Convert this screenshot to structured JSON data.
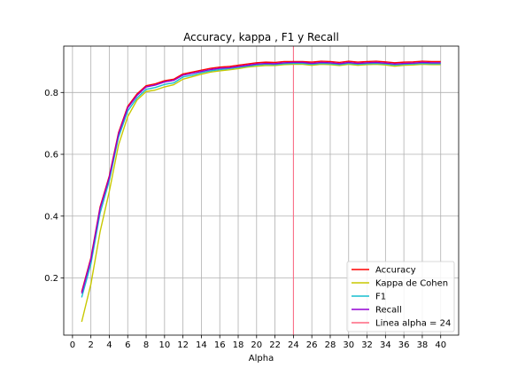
{
  "chart_data": {
    "type": "line",
    "title": "Accuracy, kappa , F1 y Recall",
    "xlabel": "Alpha",
    "ylabel": "",
    "xlim": [
      -0.95,
      41.95
    ],
    "ylim": [
      0.015,
      0.95
    ],
    "grid": true,
    "legend_position": "lower-right",
    "x_ticks": [
      0,
      2,
      4,
      6,
      8,
      10,
      12,
      14,
      16,
      18,
      20,
      22,
      24,
      26,
      28,
      30,
      32,
      34,
      36,
      38,
      40
    ],
    "y_ticks": [
      0.2,
      0.4,
      0.6,
      0.8
    ],
    "y_tick_labels": [
      "0.2",
      "0.4",
      "0.6",
      "0.8"
    ],
    "x": [
      1,
      2,
      3,
      4,
      5,
      6,
      7,
      8,
      9,
      10,
      11,
      12,
      13,
      14,
      15,
      16,
      17,
      18,
      19,
      20,
      21,
      22,
      23,
      24,
      25,
      26,
      27,
      28,
      29,
      30,
      31,
      32,
      33,
      34,
      35,
      36,
      37,
      38,
      39,
      40
    ],
    "series": [
      {
        "name": "Accuracy",
        "color": "#ff0000",
        "values": [
          0.155,
          0.265,
          0.43,
          0.53,
          0.67,
          0.755,
          0.795,
          0.822,
          0.828,
          0.838,
          0.843,
          0.86,
          0.866,
          0.872,
          0.878,
          0.882,
          0.884,
          0.888,
          0.892,
          0.896,
          0.898,
          0.897,
          0.9,
          0.9,
          0.9,
          0.898,
          0.901,
          0.9,
          0.897,
          0.901,
          0.898,
          0.9,
          0.901,
          0.899,
          0.896,
          0.898,
          0.899,
          0.901,
          0.9,
          0.9
        ]
      },
      {
        "name": "Kappa de Cohen",
        "color": "#c8c800",
        "values": [
          0.058,
          0.18,
          0.35,
          0.48,
          0.63,
          0.722,
          0.775,
          0.803,
          0.808,
          0.818,
          0.825,
          0.843,
          0.851,
          0.859,
          0.866,
          0.87,
          0.873,
          0.877,
          0.882,
          0.885,
          0.887,
          0.887,
          0.89,
          0.891,
          0.891,
          0.888,
          0.891,
          0.89,
          0.887,
          0.891,
          0.888,
          0.89,
          0.891,
          0.889,
          0.885,
          0.888,
          0.889,
          0.891,
          0.89,
          0.89
        ]
      },
      {
        "name": "F1",
        "color": "#17becf",
        "values": [
          0.137,
          0.245,
          0.41,
          0.515,
          0.655,
          0.74,
          0.782,
          0.81,
          0.816,
          0.826,
          0.831,
          0.85,
          0.856,
          0.864,
          0.87,
          0.874,
          0.877,
          0.881,
          0.885,
          0.889,
          0.891,
          0.89,
          0.893,
          0.894,
          0.894,
          0.891,
          0.894,
          0.893,
          0.89,
          0.894,
          0.891,
          0.893,
          0.894,
          0.892,
          0.889,
          0.891,
          0.892,
          0.894,
          0.893,
          0.893
        ]
      },
      {
        "name": "Recall",
        "color": "#9400d3",
        "values": [
          0.15,
          0.26,
          0.425,
          0.525,
          0.665,
          0.75,
          0.79,
          0.818,
          0.824,
          0.834,
          0.839,
          0.856,
          0.862,
          0.868,
          0.874,
          0.878,
          0.88,
          0.884,
          0.888,
          0.892,
          0.894,
          0.893,
          0.896,
          0.897,
          0.897,
          0.894,
          0.897,
          0.896,
          0.893,
          0.897,
          0.894,
          0.896,
          0.897,
          0.895,
          0.892,
          0.894,
          0.895,
          0.897,
          0.896,
          0.896
        ]
      }
    ],
    "vline": {
      "name": "Linea alpha = 24",
      "x": 24,
      "color": "#ff6680"
    }
  }
}
